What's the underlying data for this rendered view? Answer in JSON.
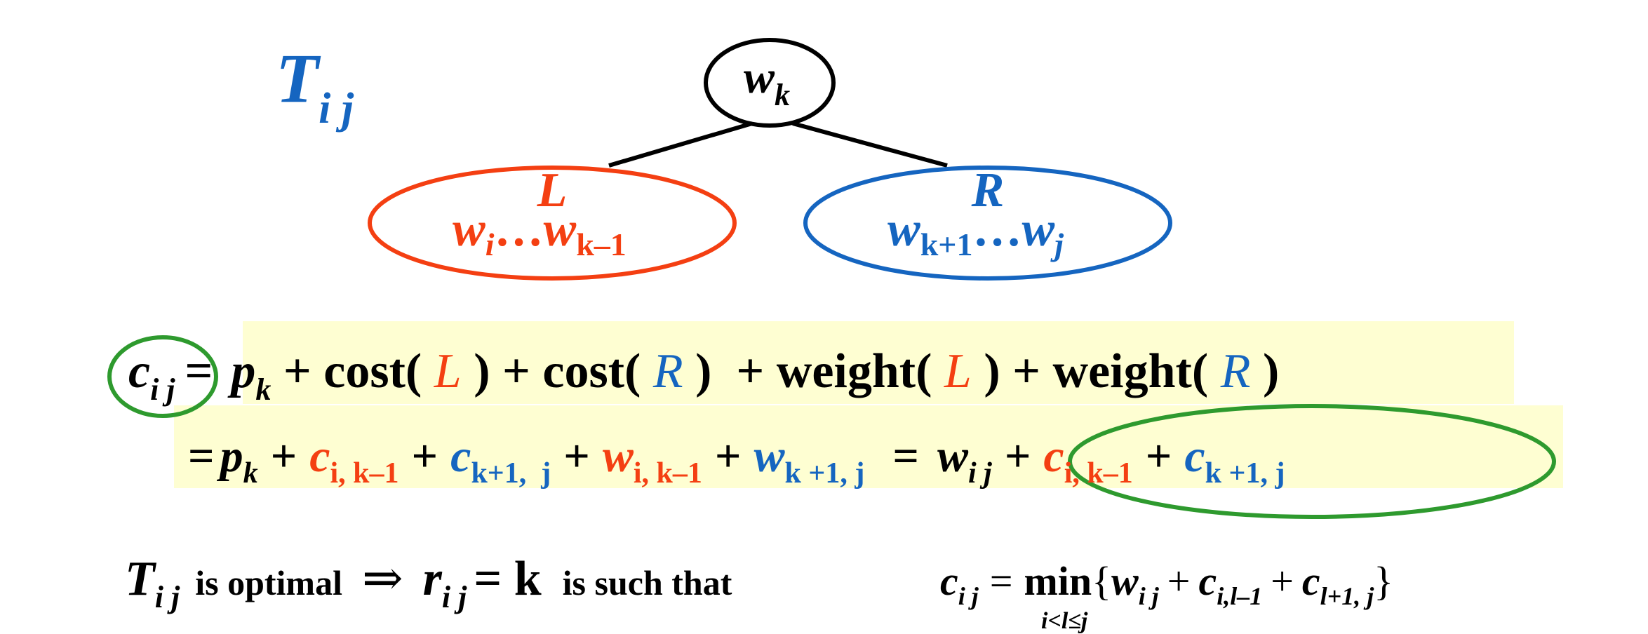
{
  "colors": {
    "black": "#000000",
    "red": "#f43f12",
    "blue": "#1565c0",
    "green": "#2e9a2e",
    "highlight": "#fefed2"
  },
  "tree": {
    "title": {
      "main": "T",
      "sub": "i j"
    },
    "root": {
      "main": "w",
      "sub": "k"
    },
    "left": {
      "letter": "L",
      "range_a": "w",
      "range_a_sub": "i",
      "dots": "…",
      "range_b": "w",
      "range_b_sub": "k–1"
    },
    "right": {
      "letter": "R",
      "range_a": "w",
      "range_a_sub": "k+1",
      "dots": "…",
      "range_b": "w",
      "range_b_sub": "j"
    }
  },
  "line1": {
    "lhs": "c",
    "lhs_sub": "i j",
    "eq": "=",
    "p": "p",
    "p_sub": "k",
    "plus1": " + cost( ",
    "L1": "L",
    "mid1": " ) + cost( ",
    "R1": "R",
    "mid2": " )  + weight( ",
    "L2": "L",
    "mid3": " ) + weight( ",
    "R2": "R",
    "close": " )"
  },
  "line2": {
    "eq": "=",
    "p": "p",
    "p_sub": "k",
    "plus": "+",
    "c1": "c",
    "c1_sub": "i, k–1",
    "c2": "c",
    "c2_sub": "k+1,  j",
    "w1": "w",
    "w1_sub": "i, k–1",
    "w2": "w",
    "w2_sub": "k +1, j",
    "eq2": "=",
    "w3": "w",
    "w3_sub": "i j",
    "c3": "c",
    "c3_sub": "i, k–1",
    "c4": "c",
    "c4_sub": "k +1, j"
  },
  "line3": {
    "T": "T",
    "T_sub": "i j",
    "is_optimal": "is optimal",
    "implies": "⇒",
    "r": "r",
    "r_sub": "i j",
    "eq_k": "= k",
    "such_that": "is such that",
    "c": "c",
    "c_sub": "i j",
    "eq": "=",
    "min": "min",
    "min_sub": "i<l≤j",
    "brace_open": "{",
    "w": "w",
    "w_sub": "i j",
    "plus": "+",
    "c1": "c",
    "c1_sub": "i,l–1",
    "c2": "c",
    "c2_sub": "l+1, j",
    "brace_close": "}"
  }
}
